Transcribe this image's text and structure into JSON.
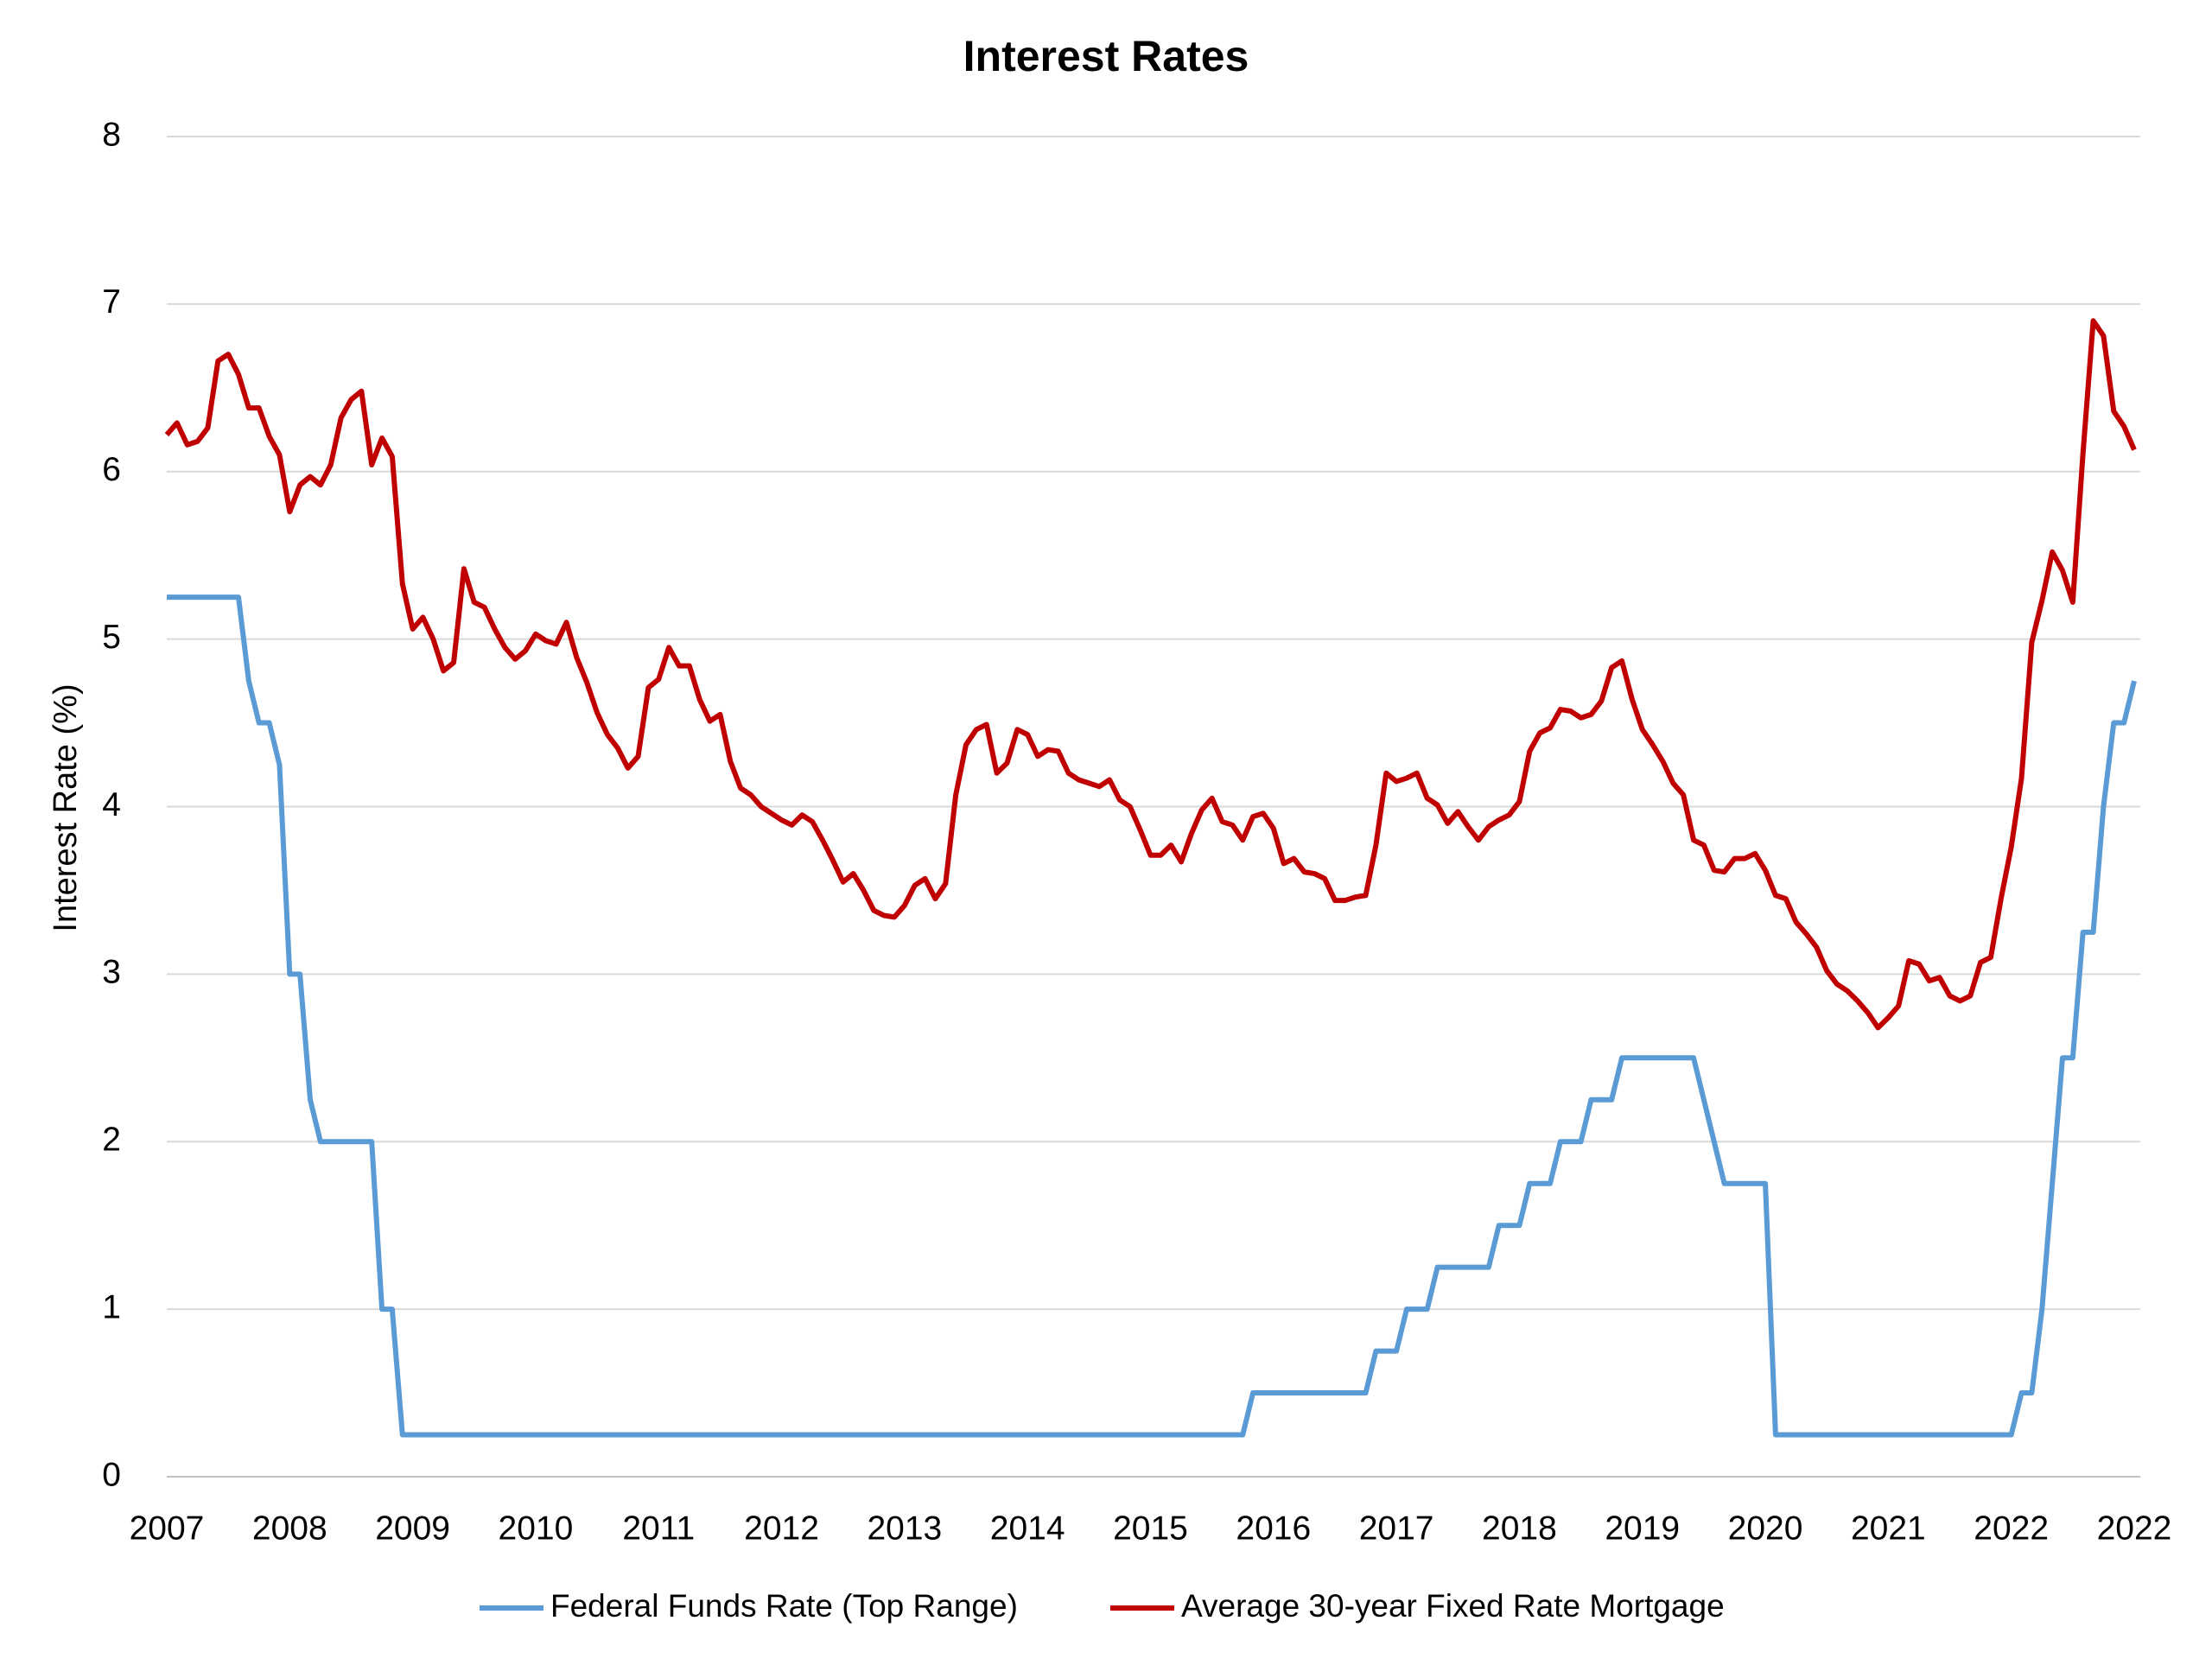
{
  "chart_data": {
    "type": "line",
    "title": "Interest Rates",
    "y_label": "Interest Rate (%)",
    "categories": [
      "2007",
      null,
      null,
      null,
      null,
      null,
      null,
      null,
      null,
      null,
      null,
      null,
      "2008",
      null,
      null,
      null,
      null,
      null,
      null,
      null,
      null,
      null,
      null,
      null,
      "2009",
      null,
      null,
      null,
      null,
      null,
      null,
      null,
      null,
      null,
      null,
      null,
      "2010",
      null,
      null,
      null,
      null,
      null,
      null,
      null,
      null,
      null,
      null,
      null,
      "2011",
      null,
      null,
      null,
      null,
      null,
      null,
      null,
      null,
      null,
      null,
      null,
      "2012",
      null,
      null,
      null,
      null,
      null,
      null,
      null,
      null,
      null,
      null,
      null,
      "2013",
      null,
      null,
      null,
      null,
      null,
      null,
      null,
      null,
      null,
      null,
      null,
      "2014",
      null,
      null,
      null,
      null,
      null,
      null,
      null,
      null,
      null,
      null,
      null,
      "2015",
      null,
      null,
      null,
      null,
      null,
      null,
      null,
      null,
      null,
      null,
      null,
      "2016",
      null,
      null,
      null,
      null,
      null,
      null,
      null,
      null,
      null,
      null,
      null,
      "2017",
      null,
      null,
      null,
      null,
      null,
      null,
      null,
      null,
      null,
      null,
      null,
      "2018",
      null,
      null,
      null,
      null,
      null,
      null,
      null,
      null,
      null,
      null,
      null,
      "2019",
      null,
      null,
      null,
      null,
      null,
      null,
      null,
      null,
      null,
      null,
      null,
      "2020",
      null,
      null,
      null,
      null,
      null,
      null,
      null,
      null,
      null,
      null,
      null,
      "2021",
      null,
      null,
      null,
      null,
      null,
      null,
      null,
      null,
      null,
      null,
      null,
      "2022",
      null,
      null,
      null,
      null,
      null,
      null,
      null,
      null,
      null,
      null,
      null,
      "2022"
    ],
    "series": [
      {
        "name": "Federal Funds Rate (Top Range)",
        "color": "#5b9bd5",
        "values": [
          5.25,
          5.25,
          5.25,
          5.25,
          5.25,
          5.25,
          5.25,
          5.25,
          4.75,
          4.5,
          4.5,
          4.25,
          3,
          3,
          2.25,
          2,
          2,
          2,
          2,
          2,
          2,
          1,
          1,
          0.25,
          0.25,
          0.25,
          0.25,
          0.25,
          0.25,
          0.25,
          0.25,
          0.25,
          0.25,
          0.25,
          0.25,
          0.25,
          0.25,
          0.25,
          0.25,
          0.25,
          0.25,
          0.25,
          0.25,
          0.25,
          0.25,
          0.25,
          0.25,
          0.25,
          0.25,
          0.25,
          0.25,
          0.25,
          0.25,
          0.25,
          0.25,
          0.25,
          0.25,
          0.25,
          0.25,
          0.25,
          0.25,
          0.25,
          0.25,
          0.25,
          0.25,
          0.25,
          0.25,
          0.25,
          0.25,
          0.25,
          0.25,
          0.25,
          0.25,
          0.25,
          0.25,
          0.25,
          0.25,
          0.25,
          0.25,
          0.25,
          0.25,
          0.25,
          0.25,
          0.25,
          0.25,
          0.25,
          0.25,
          0.25,
          0.25,
          0.25,
          0.25,
          0.25,
          0.25,
          0.25,
          0.25,
          0.25,
          0.25,
          0.25,
          0.25,
          0.25,
          0.25,
          0.25,
          0.25,
          0.25,
          0.25,
          0.25,
          0.5,
          0.5,
          0.5,
          0.5,
          0.5,
          0.5,
          0.5,
          0.5,
          0.5,
          0.5,
          0.5,
          0.5,
          0.75,
          0.75,
          0.75,
          1,
          1,
          1,
          1.25,
          1.25,
          1.25,
          1.25,
          1.25,
          1.25,
          1.5,
          1.5,
          1.5,
          1.75,
          1.75,
          1.75,
          2,
          2,
          2,
          2.25,
          2.25,
          2.25,
          2.5,
          2.5,
          2.5,
          2.5,
          2.5,
          2.5,
          2.5,
          2.5,
          2.25,
          2,
          1.75,
          1.75,
          1.75,
          1.75,
          1.75,
          0.25,
          0.25,
          0.25,
          0.25,
          0.25,
          0.25,
          0.25,
          0.25,
          0.25,
          0.25,
          0.25,
          0.25,
          0.25,
          0.25,
          0.25,
          0.25,
          0.25,
          0.25,
          0.25,
          0.25,
          0.25,
          0.25,
          0.25,
          0.25,
          0.5,
          0.5,
          1,
          1.75,
          2.5,
          2.5,
          3.25,
          3.25,
          4,
          4.5,
          4.5,
          4.75
        ]
      },
      {
        "name": "Average 30-year Fixed Rate Mortgage",
        "color": "#c00000",
        "values": [
          6.22,
          6.29,
          6.16,
          6.18,
          6.26,
          6.66,
          6.7,
          6.58,
          6.38,
          6.38,
          6.21,
          6.1,
          5.76,
          5.92,
          5.97,
          5.92,
          6.04,
          6.32,
          6.43,
          6.48,
          6.04,
          6.2,
          6.09,
          5.33,
          5.06,
          5.13,
          5.0,
          4.81,
          4.86,
          5.42,
          5.22,
          5.19,
          5.06,
          4.95,
          4.88,
          4.93,
          5.03,
          4.99,
          4.97,
          5.1,
          4.89,
          4.74,
          4.56,
          4.43,
          4.35,
          4.23,
          4.3,
          4.71,
          4.76,
          4.95,
          4.84,
          4.84,
          4.64,
          4.51,
          4.55,
          4.27,
          4.11,
          4.07,
          4.0,
          3.96,
          3.92,
          3.89,
          3.95,
          3.91,
          3.8,
          3.68,
          3.55,
          3.6,
          3.5,
          3.38,
          3.35,
          3.34,
          3.41,
          3.53,
          3.57,
          3.45,
          3.54,
          4.07,
          4.37,
          4.46,
          4.49,
          4.2,
          4.26,
          4.46,
          4.43,
          4.3,
          4.34,
          4.33,
          4.2,
          4.16,
          4.14,
          4.12,
          4.16,
          4.04,
          4.0,
          3.86,
          3.71,
          3.71,
          3.77,
          3.67,
          3.84,
          3.98,
          4.05,
          3.91,
          3.89,
          3.8,
          3.94,
          3.96,
          3.87,
          3.66,
          3.69,
          3.61,
          3.6,
          3.57,
          3.44,
          3.44,
          3.46,
          3.47,
          3.77,
          4.2,
          4.15,
          4.17,
          4.2,
          4.05,
          4.01,
          3.9,
          3.97,
          3.88,
          3.8,
          3.88,
          3.92,
          3.95,
          4.03,
          4.33,
          4.44,
          4.47,
          4.58,
          4.57,
          4.53,
          4.55,
          4.63,
          4.83,
          4.87,
          4.64,
          4.46,
          4.37,
          4.27,
          4.14,
          4.07,
          3.8,
          3.77,
          3.62,
          3.61,
          3.69,
          3.69,
          3.72,
          3.62,
          3.47,
          3.45,
          3.31,
          3.24,
          3.16,
          3.02,
          2.94,
          2.9,
          2.84,
          2.77,
          2.68,
          2.74,
          2.81,
          3.08,
          3.06,
          2.96,
          2.98,
          2.87,
          2.84,
          2.87,
          3.07,
          3.1,
          3.45,
          3.76,
          4.17,
          4.98,
          5.23,
          5.52,
          5.41,
          5.22,
          6.11,
          6.9,
          6.81,
          6.36,
          6.27,
          6.13
        ]
      }
    ],
    "ylim": [
      0,
      8
    ],
    "yticks": [
      0,
      1,
      2,
      3,
      4,
      5,
      6,
      7,
      8
    ],
    "grid": true,
    "legend": "bottom"
  }
}
